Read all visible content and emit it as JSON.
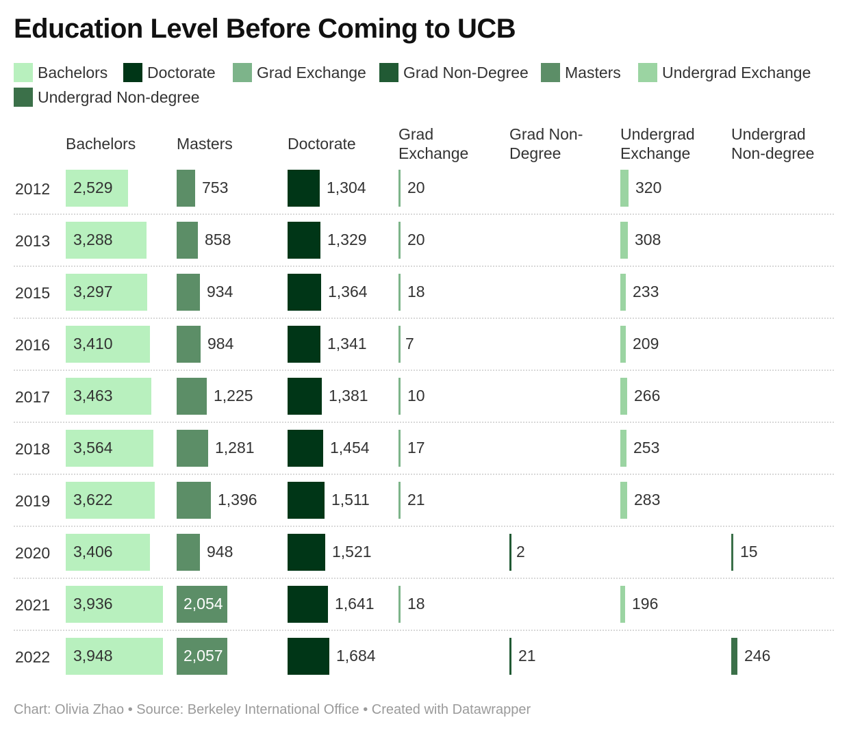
{
  "title": "Education Level Before Coming to UCB",
  "footer": "Chart: Olivia Zhao • Source: Berkeley International Office • Created with Datawrapper",
  "legend": [
    {
      "label": "Bachelors",
      "color": "#b8f0be"
    },
    {
      "label": "Doctorate",
      "color": "#003617"
    },
    {
      "label": "Grad Exchange",
      "color": "#7db48a"
    },
    {
      "label": "Grad Non-Degree",
      "color": "#215a34"
    },
    {
      "label": "Masters",
      "color": "#5c8e67"
    },
    {
      "label": "Undergrad Exchange",
      "color": "#9bd4a2"
    },
    {
      "label": "Undergrad Non-degree",
      "color": "#3b7049"
    }
  ],
  "chart_data": {
    "type": "bar",
    "title": "Education Level Before Coming to UCB",
    "categories": [
      "2012",
      "2013",
      "2015",
      "2016",
      "2017",
      "2018",
      "2019",
      "2020",
      "2021",
      "2022"
    ],
    "series": [
      {
        "name": "Bachelors",
        "header": "Bachelors",
        "color": "#b8f0be",
        "values": [
          2529,
          3288,
          3297,
          3410,
          3463,
          3564,
          3622,
          3406,
          3936,
          3948
        ],
        "labels": [
          "2,529",
          "3,288",
          "3,297",
          "3,410",
          "3,463",
          "3,564",
          "3,622",
          "3,406",
          "3,936",
          "3,948"
        ]
      },
      {
        "name": "Masters",
        "header": "Masters",
        "color": "#5c8e67",
        "values": [
          753,
          858,
          934,
          984,
          1225,
          1281,
          1396,
          948,
          2054,
          2057
        ],
        "labels": [
          "753",
          "858",
          "934",
          "984",
          "1,225",
          "1,281",
          "1,396",
          "948",
          "2,054",
          "2,057"
        ]
      },
      {
        "name": "Doctorate",
        "header": "Doctorate",
        "color": "#003617",
        "values": [
          1304,
          1329,
          1364,
          1341,
          1381,
          1454,
          1511,
          1521,
          1641,
          1684
        ],
        "labels": [
          "1,304",
          "1,329",
          "1,364",
          "1,341",
          "1,381",
          "1,454",
          "1,511",
          "1,521",
          "1,641",
          "1,684"
        ]
      },
      {
        "name": "Grad Exchange",
        "header": "Grad\nExchange",
        "color": "#7db48a",
        "values": [
          20,
          20,
          18,
          7,
          10,
          17,
          21,
          null,
          18,
          null
        ],
        "labels": [
          "20",
          "20",
          "18",
          "7",
          "10",
          "17",
          "21",
          "",
          "18",
          ""
        ]
      },
      {
        "name": "Grad Non-Degree",
        "header": "Grad Non-\nDegree",
        "color": "#215a34",
        "values": [
          null,
          null,
          null,
          null,
          null,
          null,
          null,
          2,
          null,
          21
        ],
        "labels": [
          "",
          "",
          "",
          "",
          "",
          "",
          "",
          "2",
          "",
          "21"
        ]
      },
      {
        "name": "Undergrad Exchange",
        "header": "Undergrad\nExchange",
        "color": "#9bd4a2",
        "values": [
          320,
          308,
          233,
          209,
          266,
          253,
          283,
          null,
          196,
          null
        ],
        "labels": [
          "320",
          "308",
          "233",
          "209",
          "266",
          "253",
          "283",
          "",
          "196",
          ""
        ]
      },
      {
        "name": "Undergrad Non-degree",
        "header": "Undergrad\nNon-degree",
        "color": "#3b7049",
        "values": [
          null,
          null,
          null,
          null,
          null,
          null,
          null,
          15,
          null,
          246
        ],
        "labels": [
          "",
          "",
          "",
          "",
          "",
          "",
          "",
          "15",
          "",
          "246"
        ]
      }
    ]
  }
}
